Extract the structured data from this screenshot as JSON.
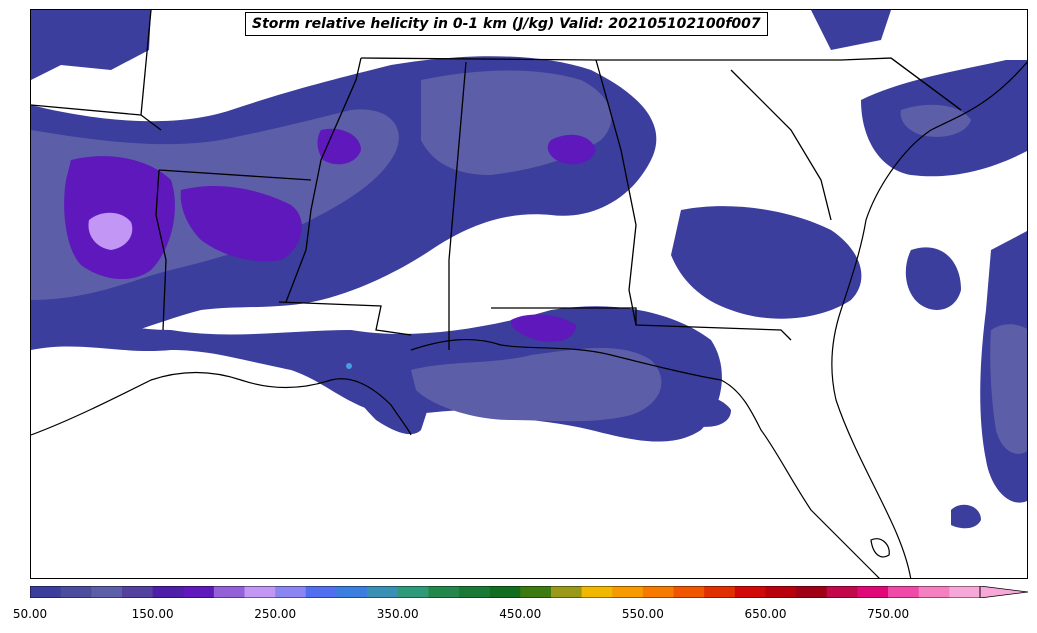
{
  "title": "Storm relative helicity in 0-1 km (J/kg) Valid: 202105102100f007",
  "colorbar": {
    "min": 50,
    "max": 825,
    "step": 25,
    "extend": "max",
    "ticks": [
      "50.00",
      "150.00",
      "250.00",
      "350.00",
      "450.00",
      "550.00",
      "650.00",
      "750.00"
    ],
    "colors": [
      "#3b3e9c",
      "#4a4c9e",
      "#5d5ea8",
      "#53409f",
      "#4e1ea8",
      "#5f18bb",
      "#9360d8",
      "#c196f5",
      "#8a85f0",
      "#4f6ef0",
      "#3a7ee0",
      "#3a8fb5",
      "#2f9a7a",
      "#23864a",
      "#1a7a35",
      "#136d1f",
      "#3d7a10",
      "#9a9a18",
      "#f0b800",
      "#f79a00",
      "#f77a00",
      "#f05500",
      "#e03000",
      "#d00808",
      "#b8000a",
      "#a00015",
      "#c0084a",
      "#e00878",
      "#f04aa8",
      "#f580c0",
      "#f8a8d8"
    ]
  },
  "legend_colors": {
    "low": "#3b3e9c",
    "mid": "#5d5ea8",
    "high": "#5f18bb",
    "peak": "#c196f5",
    "extreme": "#4a9ee0",
    "land_outline": "#000000",
    "background": "#ffffff"
  }
}
